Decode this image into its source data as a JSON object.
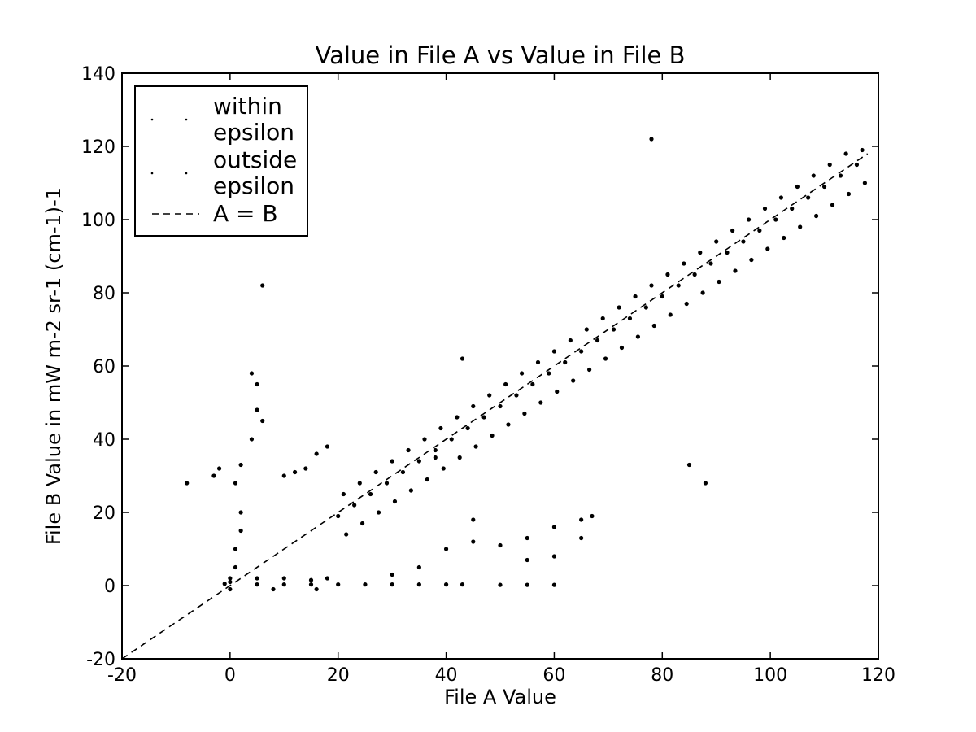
{
  "chart_data": {
    "type": "scatter",
    "title": "Value in File A vs Value in File B",
    "xlabel": "File A Value",
    "ylabel": "File B Value in mW m-2 sr-1 (cm-1)-1",
    "xlim": [
      -20,
      120
    ],
    "ylim": [
      -20,
      140
    ],
    "xticks": [
      -20,
      0,
      20,
      40,
      60,
      80,
      100,
      120
    ],
    "yticks": [
      -20,
      0,
      20,
      40,
      60,
      80,
      100,
      120,
      140
    ],
    "legend": "upper left",
    "series": [
      {
        "name": "within epsilon",
        "color": "#000000",
        "x": [
          20,
          21,
          21.5,
          23,
          24,
          24.5,
          26,
          27,
          27.5,
          29,
          30,
          30.5,
          32,
          33,
          33.5,
          35,
          36,
          36.5,
          38,
          39,
          39.5,
          41,
          42,
          42.5,
          44,
          45,
          45.5,
          47,
          48,
          48.5,
          50,
          51,
          51.5,
          53,
          54,
          54.5,
          56,
          57,
          57.5,
          59,
          60,
          60.5,
          62,
          63,
          63.5,
          65,
          66,
          66.5,
          68,
          69,
          69.5,
          71,
          72,
          72.5,
          74,
          75,
          75.5,
          77,
          78,
          78.5,
          80,
          81,
          81.5,
          83,
          84,
          84.5,
          86,
          87,
          87.5,
          89,
          90,
          90.5,
          92,
          93,
          93.5,
          95,
          96,
          96.5,
          98,
          99,
          99.5,
          101,
          102,
          102.5,
          104,
          105,
          105.5,
          107,
          108,
          108.5,
          110,
          111,
          111.5,
          113,
          114,
          114.5,
          116,
          117,
          117.5
        ],
        "values": [
          19,
          25,
          14,
          22,
          28,
          17,
          25,
          31,
          20,
          28,
          34,
          23,
          31,
          37,
          26,
          34,
          40,
          29,
          37,
          43,
          32,
          40,
          46,
          35,
          43,
          49,
          38,
          46,
          52,
          41,
          49,
          55,
          44,
          52,
          58,
          47,
          55,
          61,
          50,
          58,
          64,
          53,
          61,
          67,
          56,
          64,
          70,
          59,
          67,
          73,
          62,
          70,
          76,
          65,
          73,
          79,
          68,
          76,
          82,
          71,
          79,
          85,
          74,
          82,
          88,
          77,
          85,
          91,
          80,
          88,
          94,
          83,
          91,
          97,
          86,
          94,
          100,
          89,
          97,
          103,
          92,
          100,
          106,
          95,
          103,
          109,
          98,
          106,
          112,
          101,
          109,
          115,
          104,
          112,
          118,
          107,
          115,
          119,
          110
        ]
      },
      {
        "name": "outside epsilon",
        "color": "#000000",
        "x": [
          0,
          1,
          1,
          2,
          2,
          1,
          2,
          4,
          5,
          5,
          4,
          6,
          -3,
          -2,
          0,
          -1,
          5,
          10,
          15,
          20,
          25,
          30,
          35,
          40,
          43,
          50,
          55,
          60,
          0,
          8,
          16,
          5,
          10,
          15,
          18,
          10,
          14,
          18,
          16,
          12,
          35,
          40,
          45,
          50,
          55,
          60,
          65,
          67,
          60,
          55,
          65,
          30,
          45,
          38,
          43,
          78,
          6,
          85,
          88,
          -8
        ],
        "values": [
          2,
          5,
          10,
          15,
          20,
          28,
          33,
          40,
          48,
          55,
          58,
          45,
          30,
          32,
          1,
          0.5,
          0.3,
          0.3,
          0.3,
          0.3,
          0.3,
          0.3,
          0.3,
          0.3,
          0.3,
          0.2,
          0.2,
          0.2,
          -1,
          -1,
          -1,
          2,
          2,
          1.5,
          2,
          30,
          32,
          38,
          36,
          31,
          5,
          10,
          12,
          11,
          13,
          16,
          18,
          19,
          8,
          7,
          13,
          3,
          18,
          35,
          62,
          122,
          82,
          33,
          28,
          28
        ]
      },
      {
        "name": "A = B",
        "type": "line",
        "linestyle": "dashed",
        "color": "#000000",
        "x": [
          -20,
          118
        ],
        "values": [
          -20,
          118
        ]
      }
    ]
  }
}
